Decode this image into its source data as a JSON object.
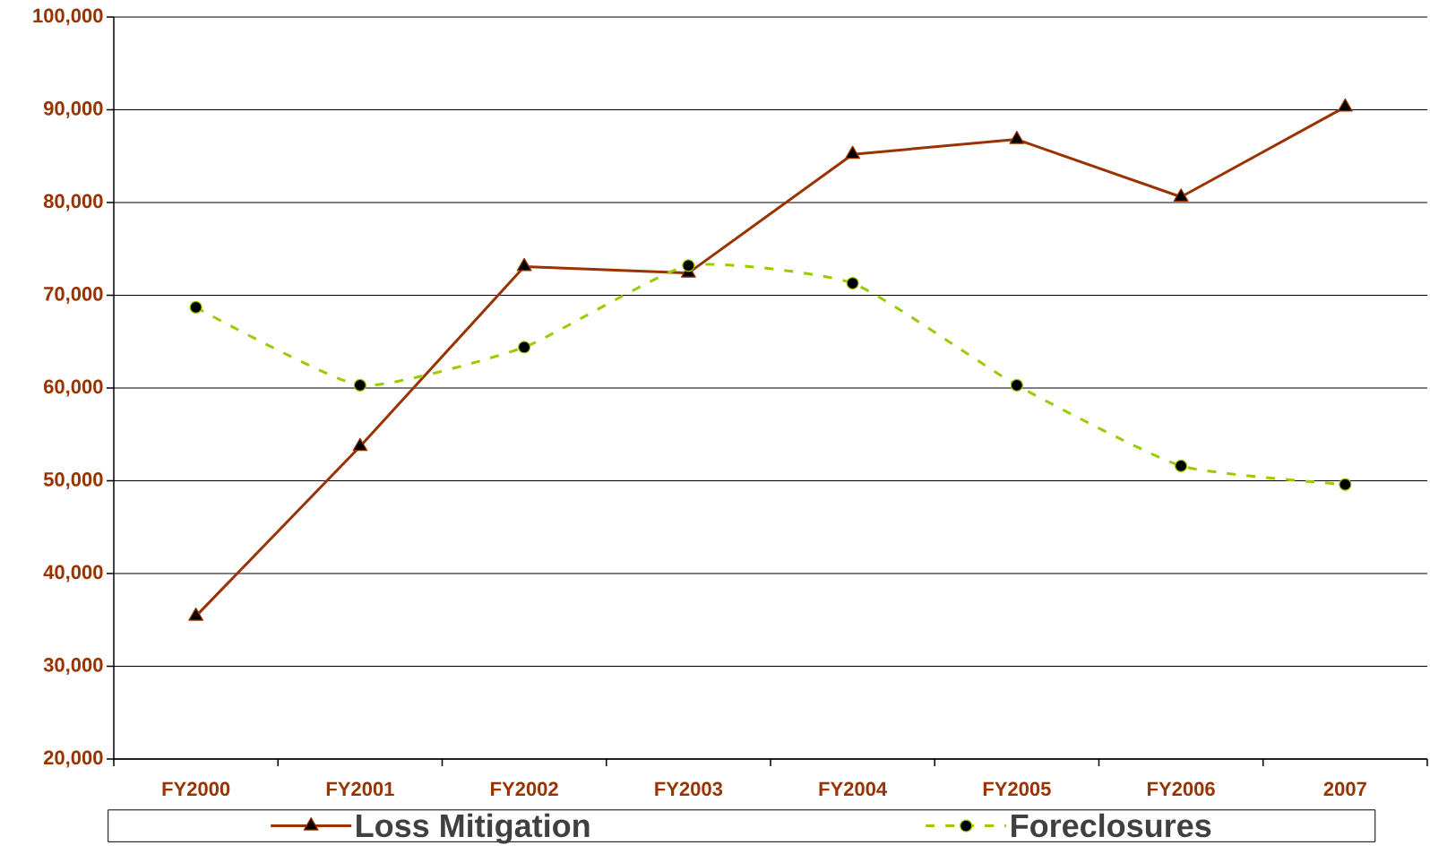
{
  "chart_data": {
    "type": "line",
    "categories": [
      "FY2000",
      "FY2001",
      "FY2002",
      "FY2003",
      "FY2004",
      "FY2005",
      "FY2006",
      "2007"
    ],
    "series": [
      {
        "name": "Loss Mitigation",
        "color": "#993300",
        "marker": "triangle",
        "line_style": "solid",
        "values": [
          35400,
          53700,
          73100,
          72400,
          85200,
          86800,
          80600,
          90300
        ]
      },
      {
        "name": "Foreclosures",
        "color": "#99cc00",
        "marker": "circle",
        "line_style": "dashed",
        "values": [
          68700,
          60300,
          64400,
          73200,
          71300,
          60300,
          51600,
          49600
        ]
      }
    ],
    "ylim": [
      20000,
      100000
    ],
    "yticks": [
      {
        "value": 20000,
        "label": "20,000"
      },
      {
        "value": 30000,
        "label": "30,000"
      },
      {
        "value": 40000,
        "label": "40,000"
      },
      {
        "value": 50000,
        "label": "50,000"
      },
      {
        "value": 60000,
        "label": "60,000"
      },
      {
        "value": 70000,
        "label": "70,000"
      },
      {
        "value": 80000,
        "label": "80,000"
      },
      {
        "value": 90000,
        "label": "90,000"
      },
      {
        "value": 100000,
        "label": "100,000"
      }
    ],
    "grid": "y",
    "legend": "bottom"
  }
}
